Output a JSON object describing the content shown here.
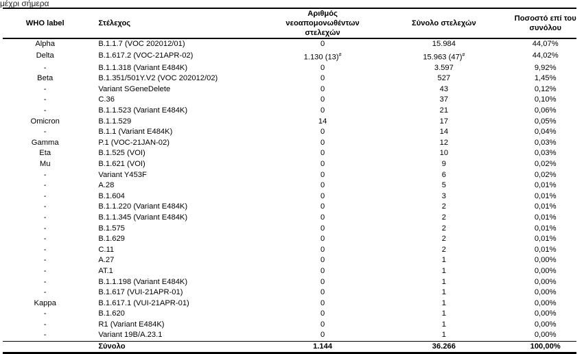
{
  "caption_fragment": "μέχρι σήμερα",
  "headers": {
    "who": "WHO label",
    "strain": "Στέλεχος",
    "new": "Αριθμός νεοαπομονωθέντων στελεχών",
    "total": "Σύνολο στελεχών",
    "pct": "Ποσοστό επί του συνόλου"
  },
  "rows": [
    {
      "who": "Alpha",
      "strain": "B.1.1.7 (VOC 202012/01)",
      "new": "0",
      "total": "15.984",
      "pct": "44,07%"
    },
    {
      "who": "Delta",
      "strain": "B.1.617.2 (VOC-21APR-02)",
      "new": "1.130 (13)",
      "new_sup": "#",
      "total": "15.963 (47)",
      "total_sup": "#",
      "pct": "44,02%"
    },
    {
      "who": "-",
      "strain": "B.1.1.318 (Variant E484K)",
      "new": "0",
      "total": "3.597",
      "pct": "9,92%"
    },
    {
      "who": "Beta",
      "strain": "B.1.351/501Y.V2 (VOC 202012/02)",
      "new": "0",
      "total": "527",
      "pct": "1,45%"
    },
    {
      "who": "-",
      "strain": "Variant SGeneDelete",
      "new": "0",
      "total": "43",
      "pct": "0,12%"
    },
    {
      "who": "-",
      "strain": "C.36",
      "new": "0",
      "total": "37",
      "pct": "0,10%"
    },
    {
      "who": "-",
      "strain": "B.1.1.523 (Variant E484K)",
      "new": "0",
      "total": "21",
      "pct": "0,06%"
    },
    {
      "who": "Omicron",
      "strain": "B.1.1.529",
      "new": "14",
      "total": "17",
      "pct": "0,05%"
    },
    {
      "who": "-",
      "strain": "B.1.1 (Variant E484K)",
      "new": "0",
      "total": "14",
      "pct": "0,04%"
    },
    {
      "who": "Gamma",
      "strain": "P.1 (VOC-21JAN-02)",
      "new": "0",
      "total": "12",
      "pct": "0,03%"
    },
    {
      "who": "Eta",
      "strain": "B.1.525 (VOI)",
      "new": "0",
      "total": "10",
      "pct": "0,03%"
    },
    {
      "who": "Mu",
      "strain": "B.1.621 (VOI)",
      "new": "0",
      "total": "9",
      "pct": "0,02%"
    },
    {
      "who": "-",
      "strain": "Variant Y453F",
      "new": "0",
      "total": "6",
      "pct": "0,02%"
    },
    {
      "who": "-",
      "strain": "A.28",
      "new": "0",
      "total": "5",
      "pct": "0,01%"
    },
    {
      "who": "-",
      "strain": "B.1.604",
      "new": "0",
      "total": "3",
      "pct": "0,01%"
    },
    {
      "who": "-",
      "strain": "B.1.1.220 (Variant E484K)",
      "new": "0",
      "total": "2",
      "pct": "0,01%"
    },
    {
      "who": "-",
      "strain": "B.1.1.345 (Variant E484K)",
      "new": "0",
      "total": "2",
      "pct": "0,01%"
    },
    {
      "who": "-",
      "strain": "B.1.575",
      "new": "0",
      "total": "2",
      "pct": "0,01%"
    },
    {
      "who": "-",
      "strain": "B.1.629",
      "new": "0",
      "total": "2",
      "pct": "0,01%"
    },
    {
      "who": "-",
      "strain": "C.11",
      "new": "0",
      "total": "2",
      "pct": "0,01%"
    },
    {
      "who": "-",
      "strain": "A.27",
      "new": "0",
      "total": "1",
      "pct": "0,00%"
    },
    {
      "who": "-",
      "strain": "AT.1",
      "new": "0",
      "total": "1",
      "pct": "0,00%"
    },
    {
      "who": "-",
      "strain": "B.1.1.198 (Variant E484K)",
      "new": "0",
      "total": "1",
      "pct": "0,00%"
    },
    {
      "who": "-",
      "strain": "B.1.617 (VUI-21APR-01)",
      "new": "0",
      "total": "1",
      "pct": "0,00%"
    },
    {
      "who": "Kappa",
      "strain": "B.1.617.1 (VUI-21APR-01)",
      "new": "0",
      "total": "1",
      "pct": "0,00%"
    },
    {
      "who": "-",
      "strain": "B.1.620",
      "new": "0",
      "total": "1",
      "pct": "0,00%"
    },
    {
      "who": "-",
      "strain": "R1 (Variant E484K)",
      "new": "0",
      "total": "1",
      "pct": "0,00%"
    },
    {
      "who": "-",
      "strain": "Variant 19B/A.23.1",
      "new": "0",
      "total": "1",
      "pct": "0,00%"
    }
  ],
  "total_row": {
    "label": "Σύνολο",
    "new": "1.144",
    "total": "36.266",
    "pct": "100,00%"
  }
}
